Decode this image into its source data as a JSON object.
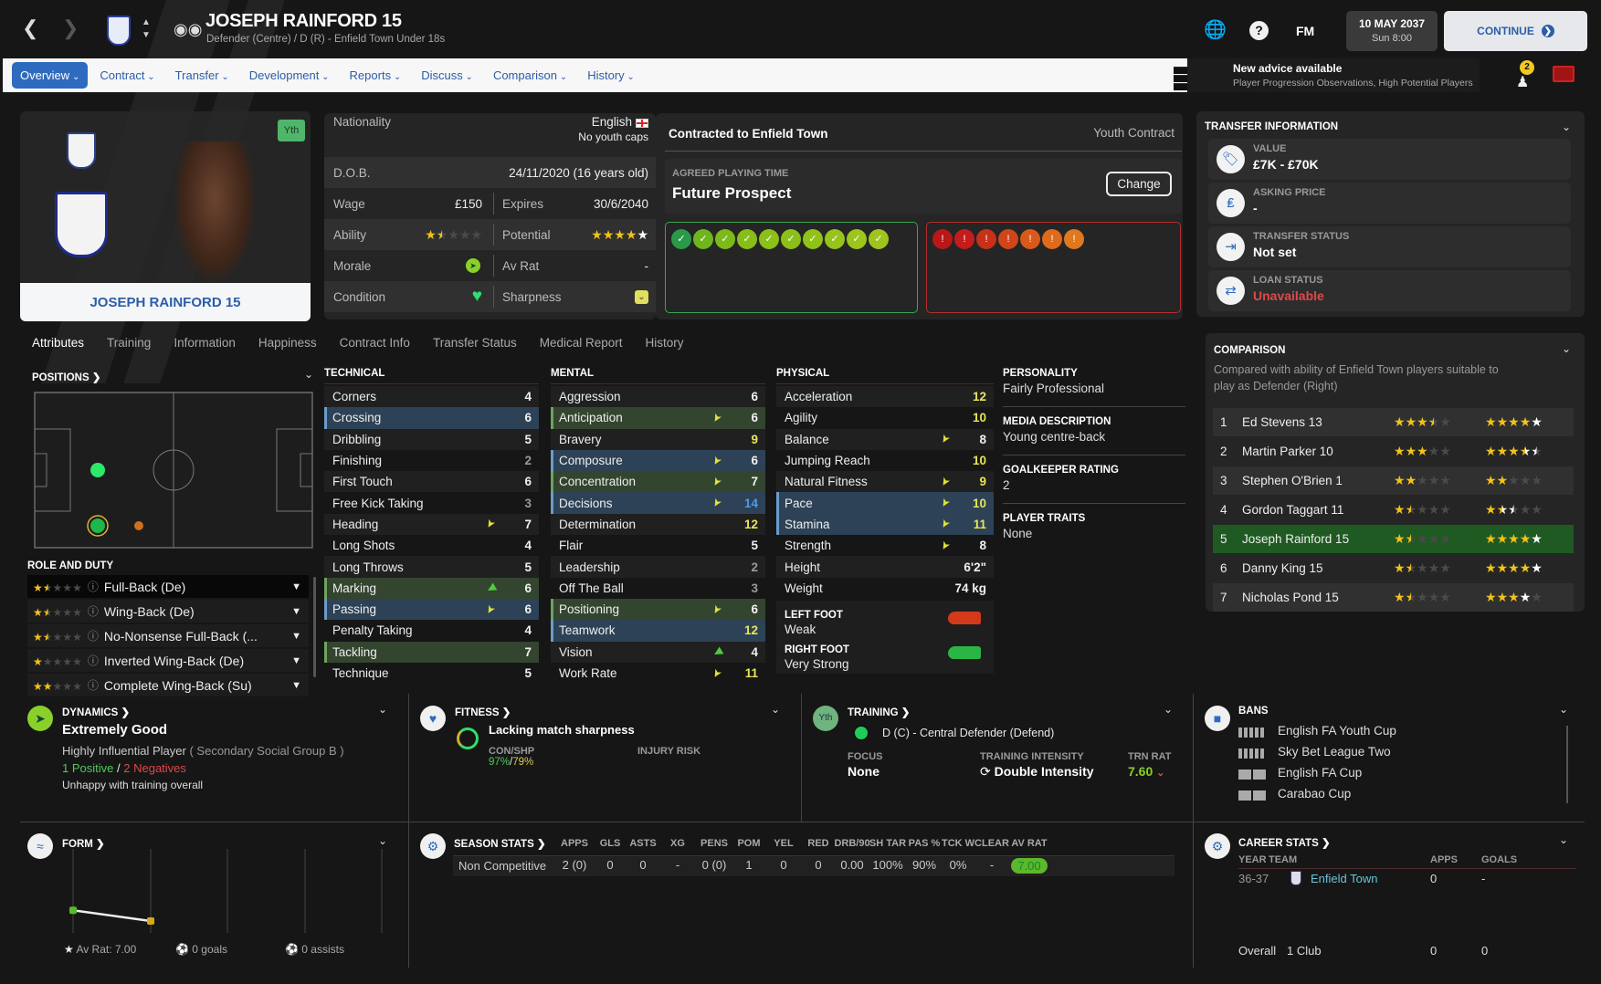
{
  "header": {
    "player_name": "JOSEPH RAINFORD 15",
    "subtitle": "Defender (Centre) / D (R) - Enfield Town Under 18s",
    "fm_label": "FM",
    "date": "10 MAY 2037",
    "time": "Sun 8:00",
    "continue_label": "CONTINUE"
  },
  "nav": {
    "items": [
      {
        "label": "Overview"
      },
      {
        "label": "Contract"
      },
      {
        "label": "Transfer"
      },
      {
        "label": "Development"
      },
      {
        "label": "Reports"
      },
      {
        "label": "Discuss"
      },
      {
        "label": "Comparison"
      },
      {
        "label": "History"
      }
    ],
    "active": "Overview"
  },
  "advice": {
    "title": "New advice available",
    "detail": "Player Progression Observations, High Potential Players",
    "badge": "2"
  },
  "profile": {
    "name": "JOSEPH RAINFORD 15",
    "youth_badge": "Yth"
  },
  "info": {
    "nationality_label": "Nationality",
    "nationality": "English",
    "caps": "No youth caps",
    "dob_label": "D.O.B.",
    "dob": "24/11/2020 (16 years old)",
    "wage_label": "Wage",
    "wage": "£150",
    "expires_label": "Expires",
    "expires": "30/6/2040",
    "ability_label": "Ability",
    "ability_stars": 1.5,
    "potential_label": "Potential",
    "potential_stars": 4,
    "potential_max_stars": 5,
    "morale_label": "Morale",
    "avrat_label": "Av Rat",
    "avrat": "-",
    "condition_label": "Condition",
    "sharpness_label": "Sharpness"
  },
  "contract": {
    "title": "Contracted to Enfield Town",
    "type": "Youth Contract",
    "playing_time_label": "AGREED PLAYING TIME",
    "playing_time": "Future Prospect",
    "change_label": "Change",
    "positive_traits": 10,
    "negative_traits": 7
  },
  "transfer_info": {
    "title": "TRANSFER INFORMATION",
    "rows": [
      {
        "label": "VALUE",
        "value": "£7K - £70K",
        "icon": "tag-icon"
      },
      {
        "label": "ASKING PRICE",
        "value": "-",
        "icon": "money-bag-icon"
      },
      {
        "label": "TRANSFER STATUS",
        "value": "Not set",
        "icon": "transfer-in-icon"
      },
      {
        "label": "LOAN STATUS",
        "value": "Unavailable",
        "icon": "swap-arrows-icon"
      }
    ]
  },
  "tabs": [
    "Attributes",
    "Training",
    "Information",
    "Happiness",
    "Contract Info",
    "Transfer Status",
    "Medical Report",
    "History"
  ],
  "positions": {
    "title": "POSITIONS",
    "role_title": "ROLE AND DUTY"
  },
  "roles": [
    {
      "label": "Full-Back (De)",
      "stars": 1.5
    },
    {
      "label": "Wing-Back (De)",
      "stars": 1.5
    },
    {
      "label": "No-Nonsense Full-Back (...",
      "stars": 1.5
    },
    {
      "label": "Inverted Wing-Back (De)",
      "stars": 1
    },
    {
      "label": "Complete Wing-Back (Su)",
      "stars": 2
    }
  ],
  "attributes": {
    "technical": {
      "title": "TECHNICAL",
      "rows": [
        {
          "name": "Corners",
          "value": "4"
        },
        {
          "name": "Crossing",
          "value": "6",
          "hl": "key"
        },
        {
          "name": "Dribbling",
          "value": "5"
        },
        {
          "name": "Finishing",
          "value": "2"
        },
        {
          "name": "First Touch",
          "value": "6"
        },
        {
          "name": "Free Kick Taking",
          "value": "3"
        },
        {
          "name": "Heading",
          "value": "7",
          "arrow": "yellow"
        },
        {
          "name": "Long Shots",
          "value": "4"
        },
        {
          "name": "Long Throws",
          "value": "5"
        },
        {
          "name": "Marking",
          "value": "6",
          "hl": "pref",
          "arrow": "green"
        },
        {
          "name": "Passing",
          "value": "6",
          "hl": "key",
          "arrow": "yellow"
        },
        {
          "name": "Penalty Taking",
          "value": "4"
        },
        {
          "name": "Tackling",
          "value": "7",
          "hl": "pref"
        },
        {
          "name": "Technique",
          "value": "5"
        }
      ]
    },
    "mental": {
      "title": "MENTAL",
      "rows": [
        {
          "name": "Aggression",
          "value": "6"
        },
        {
          "name": "Anticipation",
          "value": "6",
          "hl": "pref",
          "arrow": "yellow"
        },
        {
          "name": "Bravery",
          "value": "9"
        },
        {
          "name": "Composure",
          "value": "6",
          "hl": "key",
          "arrow": "yellow"
        },
        {
          "name": "Concentration",
          "value": "7",
          "hl": "pref",
          "arrow": "yellow"
        },
        {
          "name": "Decisions",
          "value": "14",
          "hl": "key",
          "arrow": "yellow"
        },
        {
          "name": "Determination",
          "value": "12"
        },
        {
          "name": "Flair",
          "value": "5"
        },
        {
          "name": "Leadership",
          "value": "2"
        },
        {
          "name": "Off The Ball",
          "value": "3"
        },
        {
          "name": "Positioning",
          "value": "6",
          "hl": "pref",
          "arrow": "yellow"
        },
        {
          "name": "Teamwork",
          "value": "12",
          "hl": "key"
        },
        {
          "name": "Vision",
          "value": "4",
          "arrow": "green"
        },
        {
          "name": "Work Rate",
          "value": "11",
          "arrow": "yellow"
        }
      ]
    },
    "physical": {
      "title": "PHYSICAL",
      "rows": [
        {
          "name": "Acceleration",
          "value": "12"
        },
        {
          "name": "Agility",
          "value": "10"
        },
        {
          "name": "Balance",
          "value": "8",
          "arrow": "yellow"
        },
        {
          "name": "Jumping Reach",
          "value": "10"
        },
        {
          "name": "Natural Fitness",
          "value": "9",
          "arrow": "yellow"
        },
        {
          "name": "Pace",
          "value": "10",
          "hl": "key",
          "arrow": "yellow"
        },
        {
          "name": "Stamina",
          "value": "11",
          "hl": "key",
          "arrow": "yellow"
        },
        {
          "name": "Strength",
          "value": "8",
          "arrow": "yellow"
        },
        {
          "name": "Height",
          "value": "6'2\""
        },
        {
          "name": "Weight",
          "value": "74 kg"
        }
      ]
    },
    "left_foot_label": "LEFT FOOT",
    "left_foot": "Weak",
    "right_foot_label": "RIGHT FOOT",
    "right_foot": "Very Strong"
  },
  "personality": {
    "personality_label": "PERSONALITY",
    "personality": "Fairly Professional",
    "media_label": "MEDIA DESCRIPTION",
    "media": "Young centre-back",
    "gk_label": "GOALKEEPER RATING",
    "gk": "2",
    "traits_label": "PLAYER TRAITS",
    "traits": "None"
  },
  "comparison": {
    "title": "COMPARISON",
    "description": "Compared with ability of Enfield Town players suitable to play as Defender (Right)",
    "rows": [
      {
        "rank": "1",
        "name": "Ed Stevens 13",
        "ability": 3.5,
        "potential": 4,
        "potential_max": 5
      },
      {
        "rank": "2",
        "name": "Martin Parker 10",
        "ability": 3,
        "potential": 3.5,
        "potential_max": 4.5
      },
      {
        "rank": "3",
        "name": "Stephen O'Brien 1",
        "ability": 2,
        "potential": 2,
        "potential_max": 2
      },
      {
        "rank": "4",
        "name": "Gordon Taggart 11",
        "ability": 1.5,
        "potential": 1.5,
        "potential_max": 2.5
      },
      {
        "rank": "5",
        "name": "Joseph Rainford 15",
        "ability": 1.5,
        "potential": 4,
        "potential_max": 5,
        "self": true
      },
      {
        "rank": "6",
        "name": "Danny King 15",
        "ability": 1.5,
        "potential": 4,
        "potential_max": 5
      },
      {
        "rank": "7",
        "name": "Nicholas Pond 15",
        "ability": 1.5,
        "potential": 3,
        "potential_max": 4
      }
    ]
  },
  "dynamics": {
    "title": "DYNAMICS",
    "status": "Extremely Good",
    "influence": "Highly Influential Player",
    "group": "( Secondary Social Group B )",
    "positives": "1 Positive",
    "slash": "/",
    "negatives": "2 Negatives",
    "note": "Unhappy with training overall"
  },
  "fitness": {
    "title": "FITNESS",
    "status": "Lacking match sharpness",
    "con_shp_label": "CON/SHP",
    "condition": "97%",
    "slash": "/",
    "sharpness": "79%",
    "injury_label": "INJURY RISK"
  },
  "training": {
    "title": "TRAINING",
    "badge": "Yth",
    "role": "D (C) - Central Defender (Defend)",
    "focus_label": "FOCUS",
    "focus": "None",
    "intensity_label": "TRAINING INTENSITY",
    "intensity": "Double Intensity",
    "trn_rat_label": "TRN RAT",
    "trn_rat": "7.60"
  },
  "bans": {
    "title": "BANS",
    "items": [
      "English FA Youth Cup",
      "Sky Bet League Two",
      "English FA Cup",
      "Carabao Cup"
    ]
  },
  "form": {
    "title": "FORM",
    "ratings": [
      7.2,
      6.8
    ],
    "avrat": "Av Rat: 7.00",
    "goals": "0 goals",
    "assists": "0 assists",
    "colors": [
      "#5cb82a",
      "#d8a818"
    ]
  },
  "season_stats": {
    "title": "SEASON STATS",
    "headers": [
      "APPS",
      "GLS",
      "ASTS",
      "XG",
      "PENS",
      "POM",
      "YEL",
      "RED",
      "DRB/90",
      "SH TAR",
      "PAS %",
      "TCK W",
      "CLEAR",
      "AV RAT"
    ],
    "rows": [
      {
        "label": "Non Competitive",
        "values": [
          "2 (0)",
          "0",
          "0",
          "-",
          "0 (0)",
          "1",
          "0",
          "0",
          "0.00",
          "100%",
          "90%",
          "0%",
          "-",
          "7.00"
        ]
      }
    ]
  },
  "career_stats": {
    "title": "CAREER STATS",
    "headers": [
      "YEAR",
      "TEAM",
      "APPS",
      "GOALS"
    ],
    "rows": [
      {
        "year": "36-37",
        "team": "Enfield Town",
        "apps": "0",
        "goals": "-"
      }
    ],
    "overall_label": "Overall",
    "overall_clubs": "1 Club",
    "overall_apps": "0",
    "overall_goals": "0"
  },
  "colors": {
    "accent": "#2e6bbf",
    "key_attr": "#2d4256",
    "pref_attr": "#33452f",
    "positive": "#35a854",
    "negative": "#b52d2d",
    "selected_row": "#1f5a22"
  }
}
